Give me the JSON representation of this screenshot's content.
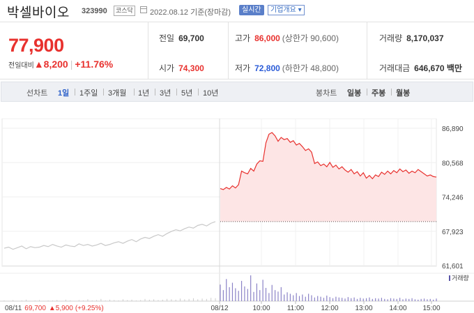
{
  "header": {
    "stock_name": "박셀바이오",
    "stock_code": "323990",
    "market_badge": "코스닥",
    "date_text": "2022.08.12  기준(장마감)",
    "realtime_label": "실시간",
    "company_info_label": "기업개요 ▾"
  },
  "summary": {
    "price": "77,900",
    "change_label": "전일대비",
    "change_amount": "▲8,200",
    "change_percent": "+11.76%",
    "prev_close_label": "전일",
    "prev_close": "69,700",
    "open_label": "시가",
    "open": "74,300",
    "high_label": "고가",
    "high": "86,000",
    "upper_limit": "(상한가 90,600)",
    "low_label": "저가",
    "low": "72,800",
    "lower_limit": "(하한가 48,800)",
    "volume_label": "거래량",
    "volume": "8,170,037",
    "amount_label": "거래대금",
    "amount": "646,670 백만"
  },
  "toolbar": {
    "line_chart_title": "선차트",
    "periods": [
      "1일",
      "1주일",
      "3개월",
      "1년",
      "3년",
      "5년",
      "10년"
    ],
    "selected_period": "1일",
    "candle_title": "봉차트",
    "candles": [
      "일봉",
      "주봉",
      "월봉"
    ]
  },
  "chart_data": {
    "type": "line",
    "y_ticks": [
      "86,890",
      "80,568",
      "74,246",
      "67,923",
      "61,601"
    ],
    "ylim": [
      61601,
      86890
    ],
    "x_ticks": [
      "08/11",
      "08/12",
      "10:00",
      "11:00",
      "12:00",
      "13:00",
      "14:00",
      "15:00"
    ],
    "volume_label": "거래량",
    "prev_day_caption": {
      "date": "08/11",
      "close": "69,700",
      "change": "▲5,900",
      "percent": "(+9.25%)"
    },
    "prev_close": 69700,
    "prev_day_series": [
      64800,
      65000,
      64600,
      64900,
      65200,
      64700,
      65100,
      64900,
      65000,
      65300,
      65100,
      65500,
      65200,
      65000,
      65400,
      65200,
      65100,
      65600,
      65300,
      65500,
      65200,
      65400,
      65700,
      65300,
      65500,
      65800,
      66000,
      65700,
      66100,
      66400,
      66000,
      66500,
      66800,
      66600,
      67000,
      67300,
      67000,
      67500,
      67900,
      68200,
      68000,
      68400,
      68700,
      68500,
      69000,
      69200,
      68900,
      69400,
      69700
    ],
    "today_series": [
      75800,
      75600,
      76000,
      75700,
      76300,
      75900,
      76500,
      79000,
      78700,
      78500,
      79500,
      79000,
      80300,
      80900,
      80800,
      84200,
      85800,
      86100,
      85500,
      84500,
      85200,
      84800,
      85000,
      84300,
      84600,
      83800,
      84100,
      83500,
      82800,
      83100,
      82500,
      80400,
      80700,
      80000,
      80300,
      79800,
      80600,
      79700,
      80100,
      79400,
      79800,
      79200,
      78800,
      79300,
      78500,
      78900,
      78100,
      78700,
      77700,
      78200,
      77600,
      78300,
      78000,
      78800,
      78400,
      79000,
      78500,
      79100,
      78700,
      79400,
      78900,
      79200,
      78600,
      79000,
      78700,
      79300,
      78900,
      78500,
      78100,
      78300,
      78000,
      77900
    ],
    "prev_day_volume": [
      2,
      1,
      3,
      1,
      2,
      4,
      1,
      2,
      3,
      1,
      2,
      2,
      3,
      1,
      4,
      2,
      1,
      3,
      2,
      5,
      2,
      3,
      6,
      2,
      4,
      3,
      2,
      5,
      3,
      4,
      2,
      3,
      6,
      4,
      5,
      3,
      4,
      6,
      5,
      4,
      7,
      5,
      6,
      8,
      5,
      7,
      6,
      9,
      8
    ],
    "today_volume": [
      45,
      30,
      60,
      38,
      50,
      35,
      28,
      55,
      40,
      33,
      70,
      25,
      48,
      30,
      58,
      36,
      22,
      44,
      30,
      26,
      38,
      18,
      24,
      20,
      16,
      22,
      14,
      18,
      12,
      20,
      16,
      10,
      14,
      12,
      9,
      15,
      11,
      8,
      12,
      10,
      9,
      7,
      11,
      8,
      10,
      6,
      9,
      7,
      8,
      10,
      6,
      8,
      7,
      9,
      6,
      5,
      8,
      7,
      6,
      9,
      5,
      7,
      6,
      8,
      5,
      4,
      6,
      7,
      5,
      6,
      4,
      7
    ]
  },
  "colors": {
    "up": "#e8312e",
    "down": "#2a5bd7",
    "line_prev": "#c8c8c8",
    "fill_today": "#fde5e5",
    "volume_today": "#8b83c7",
    "volume_prev": "#cccccc"
  }
}
